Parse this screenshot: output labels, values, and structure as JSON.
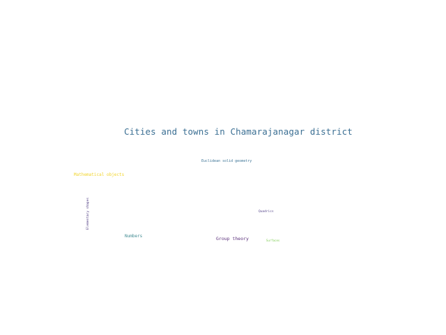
{
  "words": [
    {
      "text": "Cities and towns in Chamarajanagar district",
      "color": "#3b6f93"
    },
    {
      "text": "Euclidean solid geometry",
      "color": "#3d7496"
    },
    {
      "text": "Mathematical objects",
      "color": "#f1d42a"
    },
    {
      "text": "Elementary shapes",
      "color": "#4f3c82"
    },
    {
      "text": "Quadrics",
      "color": "#55458a"
    },
    {
      "text": "Numbers",
      "color": "#3f8a91"
    },
    {
      "text": "Group theory",
      "color": "#5a2f7a"
    },
    {
      "text": "Surfaces",
      "color": "#7dcc51"
    }
  ]
}
